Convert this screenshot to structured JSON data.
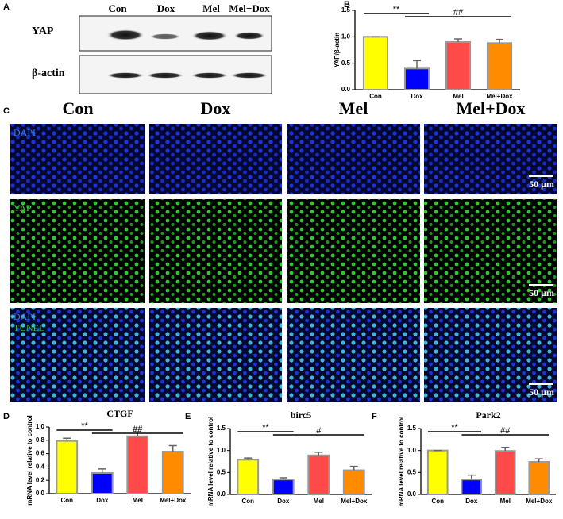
{
  "blot": {
    "panel": "A",
    "lanes": [
      "Con",
      "Dox",
      "Mel",
      "Mel+Dox"
    ],
    "rows": [
      "YAP",
      "β-actin"
    ]
  },
  "microscopy": {
    "panel": "C",
    "columns": [
      "Con",
      "Dox",
      "Mel",
      "Mel+Dox"
    ],
    "rows": [
      [
        "DAPI"
      ],
      [
        "YAP"
      ],
      [
        "DAPI",
        "TUNEL"
      ]
    ],
    "scale_bar": "50 μm"
  },
  "chart_data": [
    {
      "type": "bar",
      "panel": "B",
      "ylabel": "YAP/β-actin",
      "categories": [
        "Con",
        "Dox",
        "Mel",
        "Mel+Dox"
      ],
      "values": [
        1.0,
        0.4,
        0.9,
        0.88
      ],
      "errors": [
        0,
        0.15,
        0.06,
        0.07
      ],
      "colors": [
        "#ffff00",
        "#0000ff",
        "#ff4a4a",
        "#ff8c00"
      ],
      "ylim": [
        0,
        1.5
      ],
      "yticks": [
        {
          "value": 0,
          "label": "0.0"
        },
        0.5,
        {
          "value": 1,
          "label": "1.0"
        },
        1.5
      ],
      "annotations": [
        "**",
        "##"
      ]
    },
    {
      "type": "bar",
      "panel": "D",
      "title": "CTGF",
      "ylabel": "mRNA level relative to control",
      "categories": [
        "Con",
        "Dox",
        "Mel",
        "Mel+Dox"
      ],
      "values": [
        0.79,
        0.31,
        0.86,
        0.63
      ],
      "errors": [
        0.04,
        0.06,
        0.07,
        0.09
      ],
      "colors": [
        "#ffff00",
        "#0000ff",
        "#ff4a4a",
        "#ff8c00"
      ],
      "ylim": [
        0,
        1.0
      ],
      "yticks": [
        {
          "value": 0,
          "label": "0.0"
        },
        0.2,
        0.4,
        0.6,
        0.8,
        {
          "value": 1,
          "label": "1.0"
        }
      ],
      "annotations": [
        "**",
        "##"
      ]
    },
    {
      "type": "bar",
      "panel": "E",
      "title": "birc5",
      "ylabel": "mRNA level relative to control",
      "categories": [
        "Con",
        "Dox",
        "Mel",
        "Mel+Dox"
      ],
      "values": [
        0.79,
        0.34,
        0.89,
        0.55
      ],
      "errors": [
        0.04,
        0.04,
        0.07,
        0.09
      ],
      "colors": [
        "#ffff00",
        "#0000ff",
        "#ff4a4a",
        "#ff8c00"
      ],
      "ylim": [
        0,
        1.5
      ],
      "yticks": [
        {
          "value": 0,
          "label": "0.0"
        },
        0.5,
        {
          "value": 1,
          "label": "1.0"
        },
        1.5
      ],
      "annotations": [
        "**",
        "#"
      ]
    },
    {
      "type": "bar",
      "panel": "F",
      "title": "Park2",
      "ylabel": "mRNA level relative to control",
      "categories": [
        "Con",
        "Dox",
        "Mel",
        "Mel+Dox"
      ],
      "values": [
        1.0,
        0.34,
        0.99,
        0.74
      ],
      "errors": [
        0,
        0.1,
        0.08,
        0.07
      ],
      "colors": [
        "#ffff00",
        "#0000ff",
        "#ff4a4a",
        "#ff8c00"
      ],
      "ylim": [
        0,
        1.5
      ],
      "yticks": [
        {
          "value": 0,
          "label": "0.0"
        },
        0.5,
        {
          "value": 1,
          "label": "1.0"
        },
        1.5
      ],
      "annotations": [
        "**",
        "##"
      ]
    }
  ]
}
